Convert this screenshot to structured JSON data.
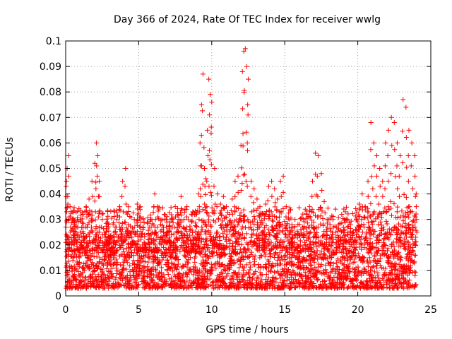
{
  "chart_data": {
    "type": "scatter",
    "title": "Day 366 of 2024, Rate Of TEC Index for receiver wwlg",
    "xlabel": "GPS time / hours",
    "ylabel": "ROTI / TECUs",
    "xlim": [
      0,
      25
    ],
    "ylim": [
      0,
      0.1
    ],
    "x_ticks": [
      0,
      5,
      10,
      15,
      20,
      25
    ],
    "x_tick_labels": [
      "0",
      "5",
      "10",
      "15",
      "20",
      "25"
    ],
    "y_ticks": [
      0,
      0.01,
      0.02,
      0.03,
      0.04,
      0.05,
      0.06,
      0.07,
      0.08,
      0.09,
      0.1
    ],
    "y_tick_labels": [
      "0",
      "0.01",
      "0.02",
      "0.03",
      "0.04",
      "0.05",
      "0.06",
      "0.07",
      "0.08",
      "0.09",
      "0.1"
    ],
    "grid": true,
    "marker": "+",
    "series": [
      {
        "name": "ROTI",
        "color": "#ff0000",
        "x": [
          0.05,
          0.1,
          0.2,
          0.3,
          0.45,
          0.6,
          0.8,
          1.0,
          1.2,
          1.4,
          1.6,
          1.8,
          2.0,
          2.1,
          2.2,
          2.3,
          2.5,
          2.7,
          2.9,
          3.1,
          3.3,
          3.5,
          3.7,
          3.9,
          4.1,
          4.3,
          4.5,
          4.7,
          4.9,
          5.1,
          5.3,
          5.5,
          5.7,
          5.9,
          6.1,
          6.3,
          6.5,
          6.7,
          6.9,
          7.1,
          7.3,
          7.5,
          7.7,
          7.9,
          8.1,
          8.3,
          8.5,
          8.7,
          8.9,
          9.1,
          9.2,
          9.3,
          9.4,
          9.5,
          9.6,
          9.7,
          9.8,
          9.9,
          10.0,
          10.2,
          10.4,
          10.6,
          10.8,
          11.0,
          11.2,
          11.4,
          11.6,
          11.8,
          12.0,
          12.1,
          12.2,
          12.3,
          12.4,
          12.5,
          12.7,
          12.9,
          13.1,
          13.3,
          13.5,
          13.7,
          13.9,
          14.1,
          14.3,
          14.5,
          14.7,
          14.9,
          15.1,
          15.3,
          15.5,
          15.7,
          15.9,
          16.1,
          16.3,
          16.5,
          16.7,
          16.9,
          17.1,
          17.3,
          17.5,
          17.7,
          17.9,
          18.1,
          18.3,
          18.5,
          18.7,
          18.9,
          19.1,
          19.3,
          19.5,
          19.7,
          19.9,
          20.1,
          20.3,
          20.5,
          20.7,
          20.9,
          21.1,
          21.3,
          21.5,
          21.7,
          21.9,
          22.1,
          22.3,
          22.5,
          22.7,
          22.9,
          23.1,
          23.3,
          23.5,
          23.7,
          23.9,
          24.0
        ],
        "y": [
          0.045,
          0.05,
          0.055,
          0.035,
          0.03,
          0.028,
          0.03,
          0.025,
          0.032,
          0.035,
          0.038,
          0.045,
          0.052,
          0.06,
          0.055,
          0.045,
          0.03,
          0.025,
          0.028,
          0.022,
          0.025,
          0.03,
          0.035,
          0.045,
          0.05,
          0.028,
          0.025,
          0.03,
          0.036,
          0.035,
          0.03,
          0.02,
          0.022,
          0.03,
          0.04,
          0.035,
          0.028,
          0.025,
          0.03,
          0.025,
          0.03,
          0.035,
          0.032,
          0.039,
          0.03,
          0.035,
          0.026,
          0.033,
          0.032,
          0.04,
          0.06,
          0.075,
          0.087,
          0.05,
          0.046,
          0.065,
          0.085,
          0.079,
          0.076,
          0.05,
          0.04,
          0.036,
          0.039,
          0.035,
          0.032,
          0.038,
          0.045,
          0.047,
          0.059,
          0.088,
          0.096,
          0.097,
          0.09,
          0.085,
          0.045,
          0.042,
          0.038,
          0.035,
          0.032,
          0.036,
          0.043,
          0.045,
          0.042,
          0.038,
          0.045,
          0.047,
          0.035,
          0.03,
          0.025,
          0.03,
          0.028,
          0.026,
          0.03,
          0.032,
          0.035,
          0.045,
          0.056,
          0.055,
          0.048,
          0.037,
          0.03,
          0.028,
          0.03,
          0.025,
          0.028,
          0.032,
          0.026,
          0.03,
          0.028,
          0.025,
          0.03,
          0.036,
          0.04,
          0.035,
          0.045,
          0.068,
          0.06,
          0.055,
          0.05,
          0.045,
          0.06,
          0.065,
          0.07,
          0.068,
          0.06,
          0.055,
          0.077,
          0.074,
          0.065,
          0.06,
          0.055,
          0.04
        ]
      }
    ],
    "background_band": {
      "description": "dense red cloud of points spanning the full day",
      "typical_range": [
        0.003,
        0.02
      ]
    }
  }
}
